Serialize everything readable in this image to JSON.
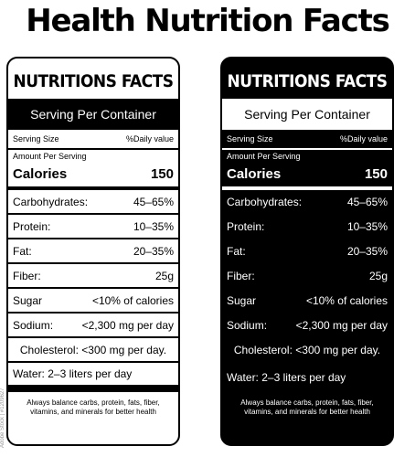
{
  "page": {
    "title": "Health Nutrition Facts"
  },
  "label": {
    "title": "NUTRITIONS FACTS",
    "serving": "Serving Per Container",
    "serving_size": "Serving Size",
    "daily_value": "%Daily value",
    "amount_per_serving": "Amount Per Serving",
    "calories_label": "Calories",
    "calories_value": "150",
    "rows": [
      {
        "label": "Carbohydrates:",
        "value": "45–65%"
      },
      {
        "label": "Protein:",
        "value": "10–35%"
      },
      {
        "label": "Fat:",
        "value": "20–35%"
      },
      {
        "label": "Fiber:",
        "value": "25g"
      },
      {
        "label": "Sugar",
        "value": "<10% of calories"
      },
      {
        "label": "Sodium:",
        "value": "<2,300 mg per day"
      },
      {
        "label": "Cholesterol:",
        "value": "<300 mg per day."
      },
      {
        "label": "Water:",
        "value": "2–3 liters per day"
      }
    ],
    "footer": "Always balance carbs, protein, fats, fiber, vitamins, and minerals for better health"
  },
  "watermark": "Adobe Stock | #1209627",
  "colors": {
    "ink": "#000000",
    "paper": "#ffffff"
  }
}
